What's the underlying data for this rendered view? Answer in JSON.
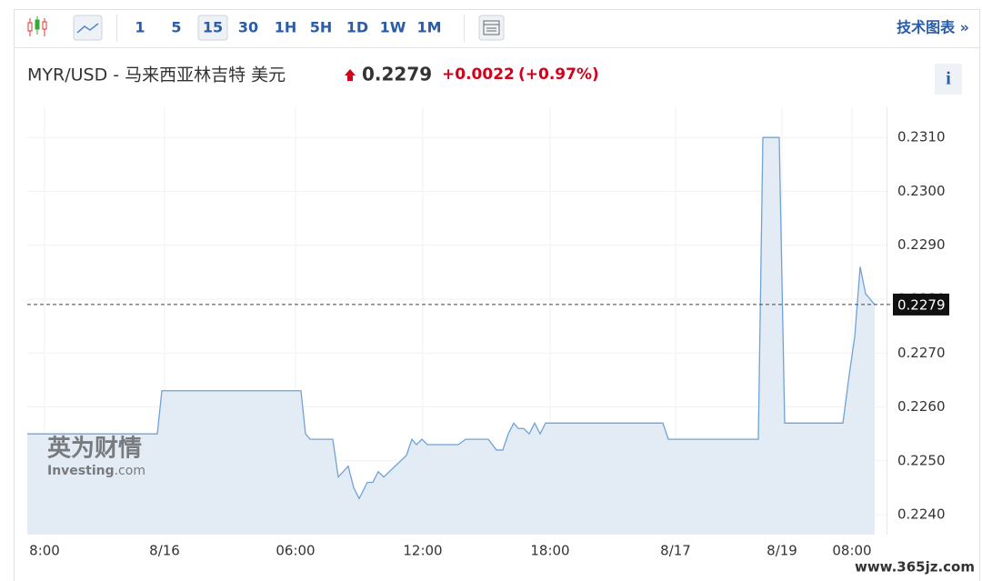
{
  "toolbar": {
    "intervals": [
      "1",
      "5",
      "15",
      "30",
      "1H",
      "5H",
      "1D",
      "1W",
      "1M"
    ],
    "active_interval": 2,
    "tech_chart_link": "技术图表 »"
  },
  "header": {
    "pair_title": "MYR/USD - 马来西亚林吉特 美元",
    "change": "+0.0022",
    "change_pct": "(+0.97%)",
    "info_label": "i"
  },
  "watermark": {
    "brand_cn": "英为财情",
    "brand_en": "Investing",
    "brand_suffix": ".com",
    "site": "www.365jz.com"
  },
  "chart_data": {
    "type": "area",
    "x": [
      0,
      28.6,
      29.6,
      60.2,
      61.2,
      62.2,
      67.2,
      68.4,
      70.6,
      71.8,
      73,
      74.8,
      76,
      77.2,
      78.4,
      83.4,
      84.6,
      85.6,
      86.8,
      88,
      94.8,
      96.4,
      101.4,
      103.2,
      104.6,
      105.8,
      107,
      108,
      109.2,
      110.4,
      111.6,
      112.8,
      114,
      139.8,
      141,
      160.8,
      161.8,
      165.4,
      166.6,
      179.4,
      180.8,
      182,
      183.2,
      184.4,
      186.4
    ],
    "series": [
      {
        "name": "MYR/USD",
        "color": "#6fa3d6",
        "fill": "#e3ecf5",
        "values": [
          0.2255,
          0.2255,
          0.2263,
          0.2263,
          0.2255,
          0.2254,
          0.2254,
          0.2247,
          0.2249,
          0.2245,
          0.2243,
          0.2246,
          0.2246,
          0.2248,
          0.2247,
          0.2251,
          0.2254,
          0.2253,
          0.2254,
          0.2253,
          0.2253,
          0.2254,
          0.2254,
          0.2252,
          0.2252,
          0.2255,
          0.2257,
          0.2256,
          0.2256,
          0.2255,
          0.2257,
          0.2255,
          0.2257,
          0.2257,
          0.2254,
          0.2254,
          0.231,
          0.231,
          0.2257,
          0.2257,
          0.2266,
          0.2273,
          0.2286,
          0.2281,
          0.2279
        ]
      }
    ],
    "last_value": 0.2279,
    "xlim": [
      0,
      189
    ],
    "xticks": [
      {
        "value": 3.8,
        "label": "8:00"
      },
      {
        "value": 30.2,
        "label": "8/16"
      },
      {
        "value": 59,
        "label": "06:00"
      },
      {
        "value": 87,
        "label": "12:00"
      },
      {
        "value": 115,
        "label": "18:00"
      },
      {
        "value": 142.6,
        "label": "8/17"
      },
      {
        "value": 166,
        "label": "8/19"
      },
      {
        "value": 181.4,
        "label": "08:00"
      }
    ],
    "ylim": [
      0.22363,
      0.23156
    ],
    "yticks": [
      {
        "value": 0.224,
        "label": "0.2240"
      },
      {
        "value": 0.225,
        "label": "0.2250"
      },
      {
        "value": 0.226,
        "label": "0.2260"
      },
      {
        "value": 0.227,
        "label": "0.2270"
      },
      {
        "value": 0.228,
        "label": "0.2280"
      },
      {
        "value": 0.229,
        "label": "0.2290"
      },
      {
        "value": 0.23,
        "label": "0.2300"
      },
      {
        "value": 0.231,
        "label": "0.2310"
      }
    ],
    "grid": true
  }
}
